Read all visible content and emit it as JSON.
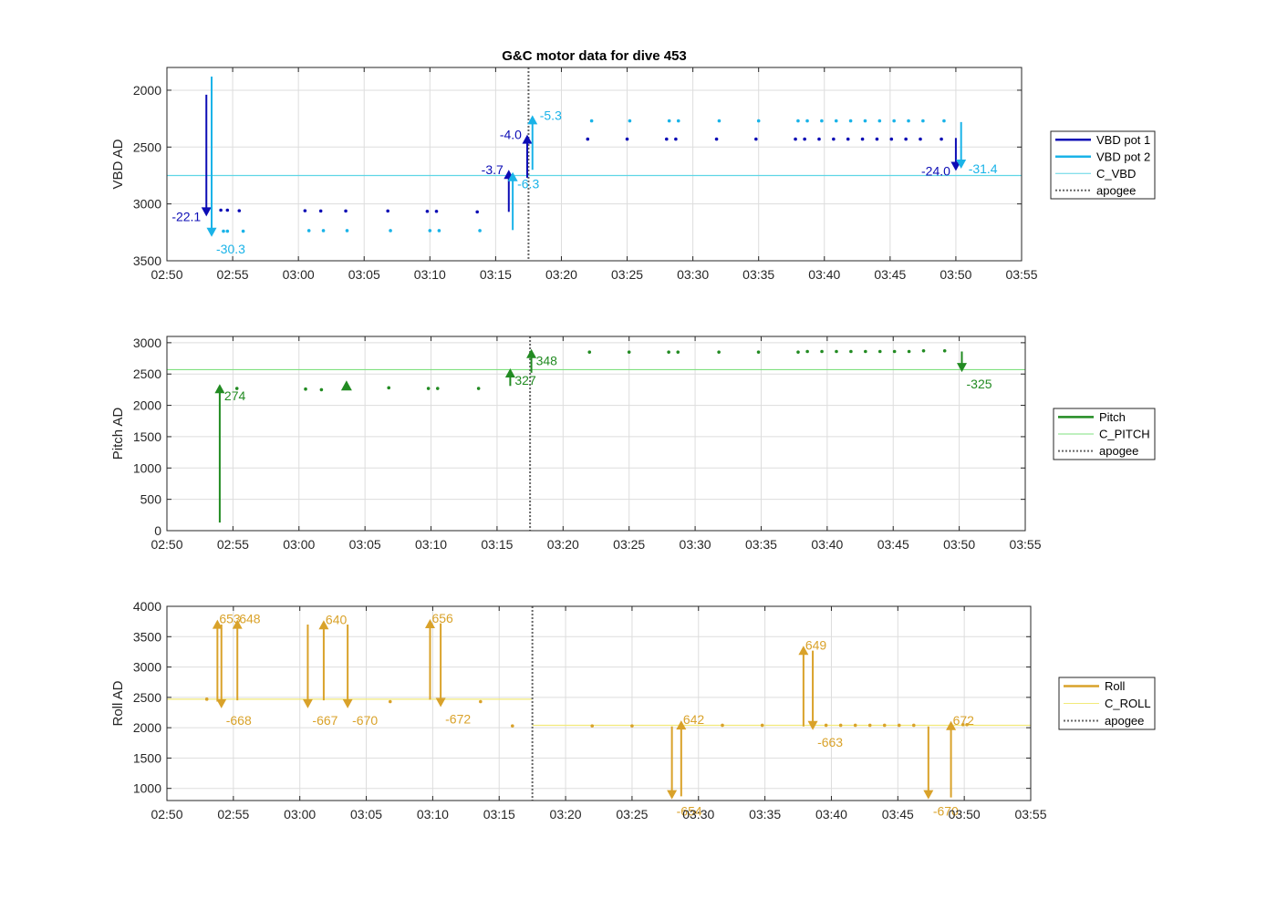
{
  "colors": {
    "vbd1": "#0d0db5",
    "vbd2": "#1ab3e8",
    "cvbd": "#5fd6e6",
    "pitch": "#228b22",
    "cpitch": "#7fe07f",
    "roll": "#d9a22a",
    "croll": "#f2ea7a",
    "apogee": "#666666",
    "grid": "#dddddd",
    "axis": "#262626"
  },
  "chart_data": [
    {
      "id": "vbd",
      "type": "scatter",
      "title": "G&C motor data for dive 453",
      "xlabel": "",
      "ylabel": "VBD AD",
      "xlim": [
        "02:50",
        "03:55"
      ],
      "ylim": [
        1800,
        3500
      ],
      "y_reversed": true,
      "x_ticks": [
        "02:50",
        "02:55",
        "03:00",
        "03:05",
        "03:10",
        "03:15",
        "03:20",
        "03:25",
        "03:30",
        "03:35",
        "03:40",
        "03:45",
        "03:50",
        "03:55"
      ],
      "y_ticks": [
        2000,
        2500,
        3000,
        3500
      ],
      "grid": true,
      "legend_position": "outside-right",
      "legend": [
        {
          "label": "VBD pot 1",
          "style": "thick",
          "color_key": "vbd1"
        },
        {
          "label": "VBD pot 2",
          "style": "thick",
          "color_key": "vbd2"
        },
        {
          "label": "C_VBD",
          "style": "thin",
          "color_key": "cvbd"
        },
        {
          "label": "apogee",
          "style": "dotted",
          "color_key": "apogee"
        }
      ],
      "hlines": [
        {
          "y": 2750,
          "color_key": "cvbd"
        }
      ],
      "apogee": "03:17.5",
      "series": [
        {
          "name": "VBD pot 1",
          "color_key": "vbd1",
          "points": [
            [
              "02:54.1",
              3055
            ],
            [
              "02:54.6",
              3055
            ],
            [
              "02:55.5",
              3060
            ],
            [
              "03:00.5",
              3060
            ],
            [
              "03:01.7",
              3062
            ],
            [
              "03:03.6",
              3062
            ],
            [
              "03:06.8",
              3062
            ],
            [
              "03:09.8",
              3065
            ],
            [
              "03:10.5",
              3065
            ],
            [
              "03:13.6",
              3070
            ],
            [
              "03:22.0",
              2430
            ],
            [
              "03:25.0",
              2430
            ],
            [
              "03:28.0",
              2430
            ],
            [
              "03:28.7",
              2430
            ],
            [
              "03:31.8",
              2430
            ],
            [
              "03:34.8",
              2430
            ],
            [
              "03:37.8",
              2430
            ],
            [
              "03:38.5",
              2430
            ],
            [
              "03:39.6",
              2430
            ],
            [
              "03:40.7",
              2430
            ],
            [
              "03:41.8",
              2430
            ],
            [
              "03:42.9",
              2430
            ],
            [
              "03:44.0",
              2430
            ],
            [
              "03:45.1",
              2430
            ],
            [
              "03:46.2",
              2430
            ],
            [
              "03:47.3",
              2430
            ],
            [
              "03:48.9",
              2430
            ]
          ]
        },
        {
          "name": "VBD pot 2",
          "color_key": "vbd2",
          "points": [
            [
              "02:54.3",
              3240
            ],
            [
              "02:54.6",
              3240
            ],
            [
              "02:55.8",
              3240
            ],
            [
              "03:00.8",
              3235
            ],
            [
              "03:01.9",
              3235
            ],
            [
              "03:03.7",
              3235
            ],
            [
              "03:07.0",
              3235
            ],
            [
              "03:10.0",
              3235
            ],
            [
              "03:10.7",
              3235
            ],
            [
              "03:13.8",
              3235
            ],
            [
              "03:22.3",
              2270
            ],
            [
              "03:25.2",
              2270
            ],
            [
              "03:28.2",
              2270
            ],
            [
              "03:28.9",
              2270
            ],
            [
              "03:32.0",
              2270
            ],
            [
              "03:35.0",
              2270
            ],
            [
              "03:38.0",
              2270
            ],
            [
              "03:38.7",
              2270
            ],
            [
              "03:39.8",
              2270
            ],
            [
              "03:40.9",
              2270
            ],
            [
              "03:42.0",
              2270
            ],
            [
              "03:43.1",
              2270
            ],
            [
              "03:44.2",
              2270
            ],
            [
              "03:45.3",
              2270
            ],
            [
              "03:46.4",
              2270
            ],
            [
              "03:47.5",
              2270
            ],
            [
              "03:49.1",
              2270
            ]
          ]
        }
      ],
      "moves": [
        {
          "x": "02:53.0",
          "from": 2040,
          "to": 3110,
          "label": "-22.1",
          "color_key": "vbd1",
          "label_pos": "left"
        },
        {
          "x": "02:53.4",
          "from": 1880,
          "to": 3290,
          "label": "-30.3",
          "color_key": "vbd2",
          "label_pos": "below-right"
        },
        {
          "x": "03:16.0",
          "from": 3070,
          "to": 2700,
          "label": "-3.7",
          "color_key": "vbd1",
          "label_pos": "left"
        },
        {
          "x": "03:16.3",
          "from": 3230,
          "to": 2720,
          "label": "-6.3",
          "color_key": "vbd2",
          "label_pos": "below-right"
        },
        {
          "x": "03:17.4",
          "from": 2770,
          "to": 2390,
          "label": "-4.0",
          "color_key": "vbd1",
          "label_pos": "left"
        },
        {
          "x": "03:17.8",
          "from": 2700,
          "to": 2220,
          "label": "-5.3",
          "color_key": "vbd2",
          "label_pos": "right"
        },
        {
          "x": "03:50.0",
          "from": 2420,
          "to": 2710,
          "label": "-24.0",
          "color_key": "vbd1",
          "label_pos": "left"
        },
        {
          "x": "03:50.4",
          "from": 2280,
          "to": 2690,
          "label": "-31.4",
          "color_key": "vbd2",
          "label_pos": "right"
        }
      ]
    },
    {
      "id": "pitch",
      "type": "scatter",
      "title": "",
      "xlabel": "",
      "ylabel": "Pitch AD",
      "xlim": [
        "02:50",
        "03:55"
      ],
      "ylim": [
        0,
        3100
      ],
      "y_reversed": false,
      "x_ticks": [
        "02:50",
        "02:55",
        "03:00",
        "03:05",
        "03:10",
        "03:15",
        "03:20",
        "03:25",
        "03:30",
        "03:35",
        "03:40",
        "03:45",
        "03:50",
        "03:55"
      ],
      "y_ticks": [
        0,
        500,
        1000,
        1500,
        2000,
        2500,
        3000
      ],
      "grid": true,
      "legend_position": "outside-right",
      "legend": [
        {
          "label": "Pitch",
          "style": "thick",
          "color_key": "pitch"
        },
        {
          "label": "C_PITCH",
          "style": "thin",
          "color_key": "cpitch"
        },
        {
          "label": "apogee",
          "style": "dotted",
          "color_key": "apogee"
        }
      ],
      "hlines": [
        {
          "y": 2570,
          "color_key": "cpitch"
        }
      ],
      "apogee": "03:17.5",
      "series": [
        {
          "name": "Pitch",
          "color_key": "pitch",
          "points": [
            [
              "02:55.3",
              2270
            ],
            [
              "03:00.5",
              2260
            ],
            [
              "03:01.7",
              2250
            ],
            [
              "03:06.8",
              2280
            ],
            [
              "03:09.8",
              2270
            ],
            [
              "03:10.5",
              2270
            ],
            [
              "03:13.6",
              2270
            ],
            [
              "03:22.0",
              2850
            ],
            [
              "03:25.0",
              2850
            ],
            [
              "03:28.0",
              2850
            ],
            [
              "03:28.7",
              2850
            ],
            [
              "03:31.8",
              2850
            ],
            [
              "03:34.8",
              2850
            ],
            [
              "03:37.8",
              2850
            ],
            [
              "03:38.5",
              2860
            ],
            [
              "03:39.6",
              2860
            ],
            [
              "03:40.7",
              2860
            ],
            [
              "03:41.8",
              2860
            ],
            [
              "03:42.9",
              2860
            ],
            [
              "03:44.0",
              2860
            ],
            [
              "03:45.1",
              2860
            ],
            [
              "03:46.2",
              2860
            ],
            [
              "03:47.3",
              2870
            ],
            [
              "03:48.9",
              2870
            ]
          ]
        }
      ],
      "markers": [
        {
          "x": "03:03.6",
          "y": 2310,
          "shape": "triangle"
        }
      ],
      "moves": [
        {
          "x": "02:54.0",
          "from": 130,
          "to": 2340,
          "label": "274",
          "color_key": "pitch",
          "label_pos": "below-right"
        },
        {
          "x": "03:16.0",
          "from": 2310,
          "to": 2590,
          "label": "327",
          "color_key": "pitch",
          "label_pos": "below-right"
        },
        {
          "x": "03:17.6",
          "from": 2520,
          "to": 2900,
          "label": "348",
          "color_key": "pitch",
          "label_pos": "below-right"
        },
        {
          "x": "03:50.2",
          "from": 2860,
          "to": 2530,
          "label": "-325",
          "color_key": "pitch",
          "label_pos": "below-right"
        }
      ]
    },
    {
      "id": "roll",
      "type": "scatter",
      "title": "",
      "xlabel": "",
      "ylabel": "Roll AD",
      "xlim": [
        "02:50",
        "03:55"
      ],
      "ylim": [
        800,
        4000
      ],
      "y_reversed": false,
      "x_ticks": [
        "02:50",
        "02:55",
        "03:00",
        "03:05",
        "03:10",
        "03:15",
        "03:20",
        "03:25",
        "03:30",
        "03:35",
        "03:40",
        "03:45",
        "03:50",
        "03:55"
      ],
      "y_ticks": [
        1000,
        1500,
        2000,
        2500,
        3000,
        3500,
        4000
      ],
      "grid": true,
      "legend_position": "outside-right",
      "legend": [
        {
          "label": "Roll",
          "style": "thick",
          "color_key": "roll"
        },
        {
          "label": "C_ROLL",
          "style": "thin",
          "color_key": "croll"
        },
        {
          "label": "apogee",
          "style": "dotted",
          "color_key": "apogee"
        }
      ],
      "hlines": [
        {
          "y": 2470,
          "x_from": "02:50",
          "x_to": "03:17.5",
          "color_key": "croll"
        },
        {
          "y": 2040,
          "x_from": "03:17.5",
          "x_to": "03:55",
          "color_key": "croll"
        }
      ],
      "apogee": "03:17.5",
      "series": [
        {
          "name": "Roll",
          "color_key": "roll",
          "points": [
            [
              "02:53.0",
              2470
            ],
            [
              "03:06.8",
              2430
            ],
            [
              "03:13.6",
              2430
            ],
            [
              "03:16.0",
              2030
            ],
            [
              "03:22.0",
              2030
            ],
            [
              "03:25.0",
              2030
            ],
            [
              "03:31.8",
              2040
            ],
            [
              "03:34.8",
              2040
            ],
            [
              "03:39.6",
              2040
            ],
            [
              "03:40.7",
              2040
            ],
            [
              "03:41.8",
              2040
            ],
            [
              "03:42.9",
              2040
            ],
            [
              "03:44.0",
              2040
            ],
            [
              "03:45.1",
              2040
            ],
            [
              "03:46.2",
              2040
            ],
            [
              "03:49.9",
              2050
            ],
            [
              "03:50.2",
              2050
            ]
          ]
        }
      ],
      "moves": [
        {
          "x": "02:53.8",
          "from": 2430,
          "to": 3780,
          "label": "653",
          "color_key": "roll",
          "label_pos": "right-top"
        },
        {
          "x": "02:54.1",
          "from": 3700,
          "to": 2320,
          "label": "-668",
          "color_key": "roll",
          "label_pos": "below-right"
        },
        {
          "x": "02:55.3",
          "from": 2450,
          "to": 3780,
          "label": "648",
          "color_key": "roll",
          "label_pos": "right-top"
        },
        {
          "x": "03:00.6",
          "from": 3700,
          "to": 2320,
          "label": "-667",
          "color_key": "roll",
          "label_pos": "below-right"
        },
        {
          "x": "03:01.8",
          "from": 2450,
          "to": 3770,
          "label": "640",
          "color_key": "roll",
          "label_pos": "right-top"
        },
        {
          "x": "03:03.6",
          "from": 3700,
          "to": 2320,
          "label": "-670",
          "color_key": "roll",
          "label_pos": "below-right"
        },
        {
          "x": "03:09.8",
          "from": 2460,
          "to": 3790,
          "label": "656",
          "color_key": "roll",
          "label_pos": "right-top"
        },
        {
          "x": "03:10.6",
          "from": 3720,
          "to": 2340,
          "label": "-672",
          "color_key": "roll",
          "label_pos": "below-right"
        },
        {
          "x": "03:28.0",
          "from": 2020,
          "to": 820,
          "label": "-654",
          "color_key": "roll",
          "label_pos": "below-right"
        },
        {
          "x": "03:28.7",
          "from": 870,
          "to": 2120,
          "label": "642",
          "color_key": "roll",
          "label_pos": "right-top"
        },
        {
          "x": "03:37.9",
          "from": 2020,
          "to": 3350,
          "label": "649",
          "color_key": "roll",
          "label_pos": "right-top"
        },
        {
          "x": "03:38.6",
          "from": 3270,
          "to": 1960,
          "label": "-663",
          "color_key": "roll",
          "label_pos": "below-right"
        },
        {
          "x": "03:47.3",
          "from": 2020,
          "to": 820,
          "label": "-670",
          "color_key": "roll",
          "label_pos": "below-right"
        },
        {
          "x": "03:49.0",
          "from": 850,
          "to": 2110,
          "label": "672",
          "color_key": "roll",
          "label_pos": "right-top"
        }
      ]
    }
  ]
}
